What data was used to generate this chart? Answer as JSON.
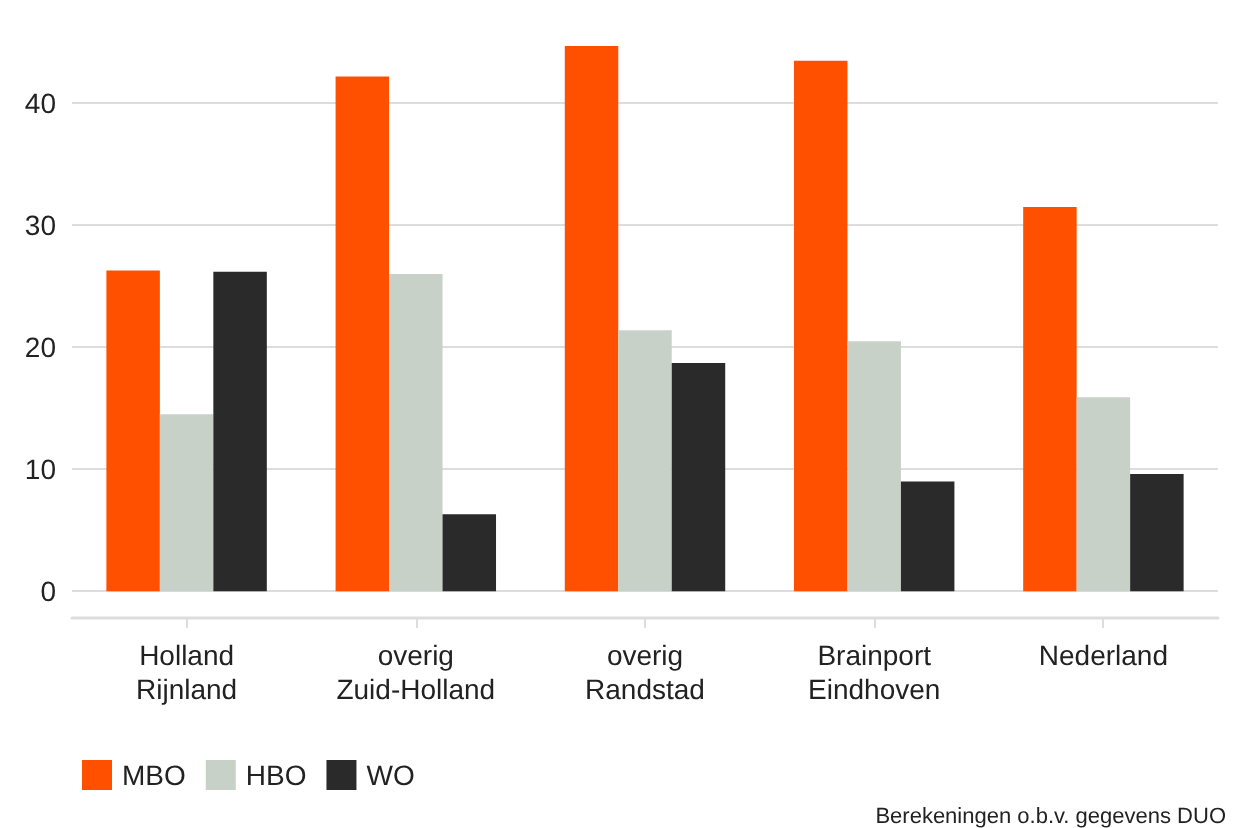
{
  "chart_data": {
    "type": "bar",
    "categories": [
      "Holland\nRijnland",
      "overig\nZuid-Holland",
      "overig\nRandstad",
      "Brainport\nEindhoven",
      "Nederland"
    ],
    "series": [
      {
        "name": "MBO",
        "color": "#ff5000",
        "values": [
          26.3,
          42.2,
          44.7,
          43.5,
          31.5
        ]
      },
      {
        "name": "HBO",
        "color": "#c8d1c8",
        "values": [
          14.5,
          26.0,
          21.4,
          20.5,
          15.9
        ]
      },
      {
        "name": "WO",
        "color": "#2a2a2a",
        "values": [
          26.2,
          6.3,
          18.7,
          9.0,
          9.6
        ]
      }
    ],
    "ylim": [
      -2.2,
      44.7
    ],
    "yticks": [
      0,
      10,
      20,
      30,
      40
    ],
    "grid": "y",
    "legend": "bottom left",
    "annotations": [
      "Berekeningen o.b.v. gegevens DUO"
    ]
  }
}
